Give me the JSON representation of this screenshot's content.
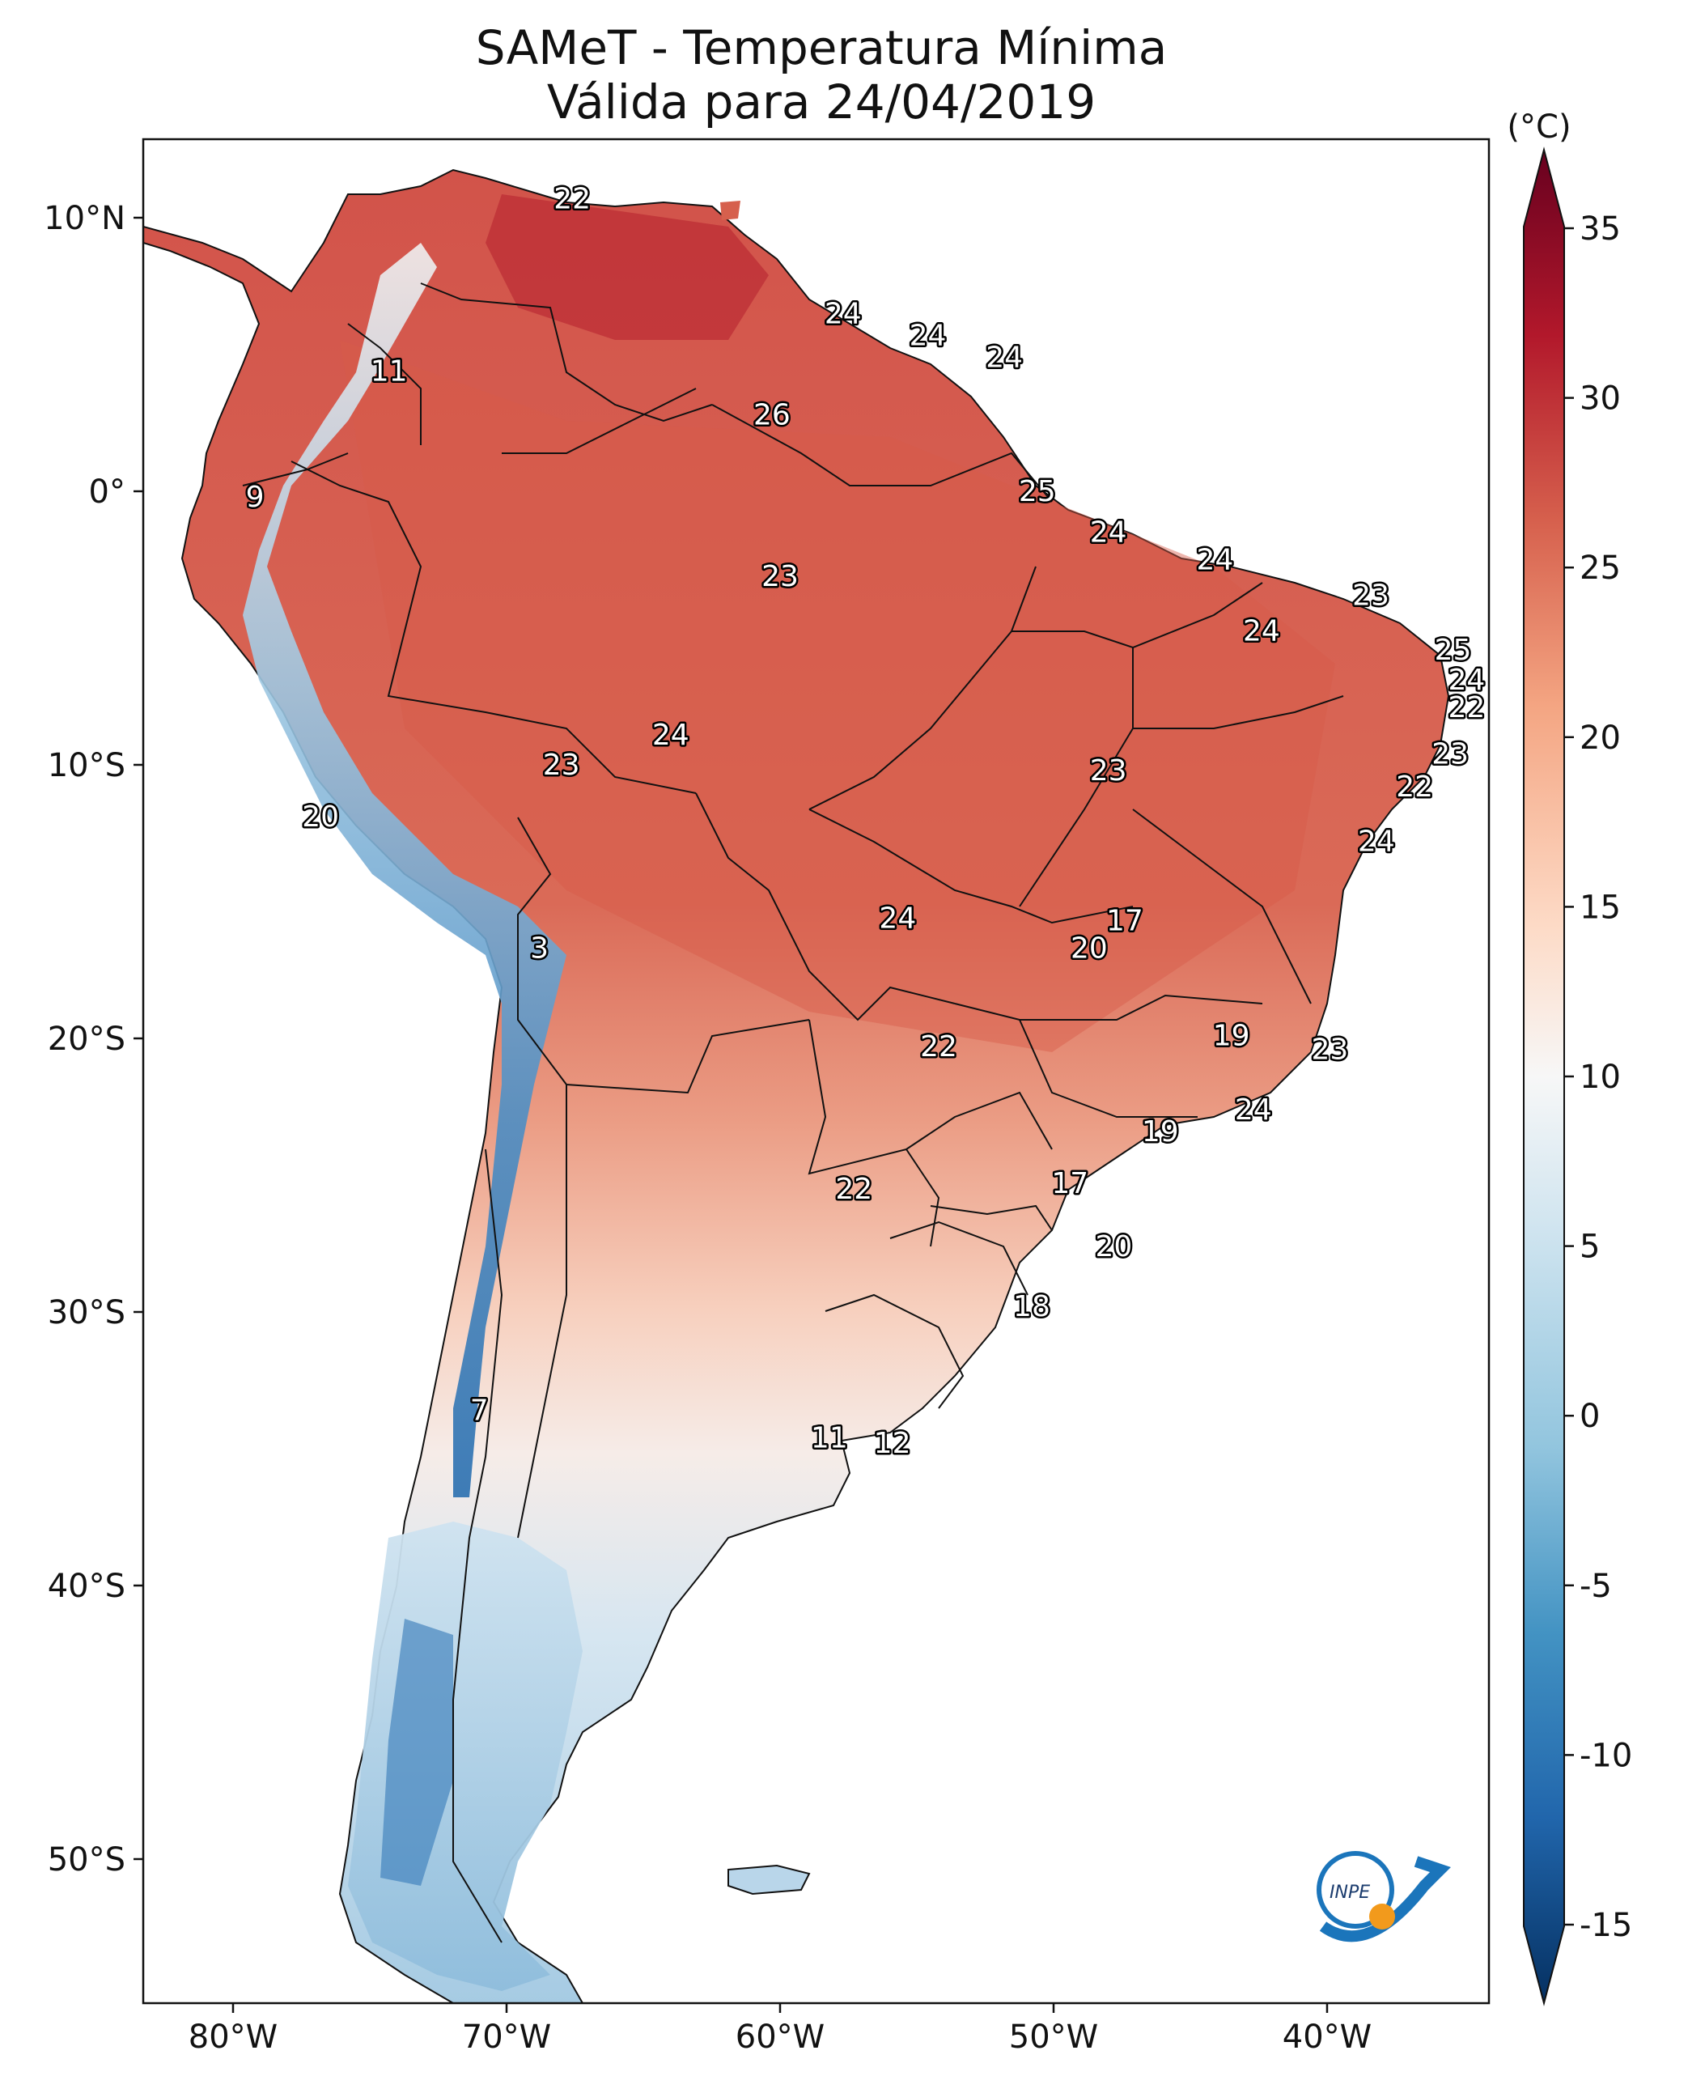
{
  "title": {
    "line1": "SAMeT - Temperatura Mínima",
    "line2": "Válida para 24/04/2019"
  },
  "map": {
    "lat_ticks": [
      "10°N",
      "0°",
      "10°S",
      "20°S",
      "30°S",
      "40°S",
      "50°S"
    ],
    "lon_ticks": [
      "80°W",
      "70°W",
      "60°W",
      "50°W",
      "40°W"
    ]
  },
  "colorbar": {
    "unit": "(°C)",
    "ticks": [
      "35",
      "30",
      "25",
      "20",
      "15",
      "10",
      "5",
      "0",
      "-5",
      "-10",
      "-15"
    ],
    "colors": [
      "#053061",
      "#2166ac",
      "#4393c3",
      "#92c5de",
      "#d1e5f0",
      "#f7f7f7",
      "#fddbc7",
      "#f4a582",
      "#d6604d",
      "#b2182b",
      "#67001f"
    ]
  },
  "labels": [
    {
      "name": "label-caribbean",
      "text": "22",
      "lon": -67.6,
      "lat": 10.7
    },
    {
      "name": "label-colombia",
      "text": "11",
      "lon": -74.3,
      "lat": 4.4
    },
    {
      "name": "label-venezuela-east",
      "text": "24",
      "lon": -57.7,
      "lat": 6.5
    },
    {
      "name": "label-guyana",
      "text": "24",
      "lon": -54.6,
      "lat": 5.7
    },
    {
      "name": "label-suriname",
      "text": "24",
      "lon": -51.8,
      "lat": 4.9
    },
    {
      "name": "label-roraima",
      "text": "26",
      "lon": -60.3,
      "lat": 2.8
    },
    {
      "name": "label-ecuador",
      "text": "9",
      "lon": -79.2,
      "lat": -0.2
    },
    {
      "name": "label-amapa",
      "text": "25",
      "lon": -50.6,
      "lat": 0.0
    },
    {
      "name": "label-para-north",
      "text": "24",
      "lon": -48.0,
      "lat": -1.5
    },
    {
      "name": "label-maranhao",
      "text": "24",
      "lon": -44.1,
      "lat": -2.5
    },
    {
      "name": "label-ceara",
      "text": "23",
      "lon": -38.4,
      "lat": -3.8
    },
    {
      "name": "label-amazonas",
      "text": "23",
      "lon": -60.0,
      "lat": -3.1
    },
    {
      "name": "label-piaui",
      "text": "24",
      "lon": -42.4,
      "lat": -5.1
    },
    {
      "name": "label-rn",
      "text": "25",
      "lon": -35.4,
      "lat": -5.8
    },
    {
      "name": "label-pb",
      "text": "24",
      "lon": -34.9,
      "lat": -6.9
    },
    {
      "name": "label-pe",
      "text": "22",
      "lon": -34.9,
      "lat": -7.9
    },
    {
      "name": "label-acre-east",
      "text": "24",
      "lon": -64.0,
      "lat": -8.9
    },
    {
      "name": "label-acre",
      "text": "23",
      "lon": -68.0,
      "lat": -10.0
    },
    {
      "name": "label-tocantins",
      "text": "23",
      "lon": -48.0,
      "lat": -10.2
    },
    {
      "name": "label-alagoas",
      "text": "23",
      "lon": -35.5,
      "lat": -9.6
    },
    {
      "name": "label-sergipe",
      "text": "22",
      "lon": -36.8,
      "lat": -10.8
    },
    {
      "name": "label-peru",
      "text": "20",
      "lon": -76.8,
      "lat": -11.9
    },
    {
      "name": "label-bahia",
      "text": "24",
      "lon": -38.2,
      "lat": -12.8
    },
    {
      "name": "label-bolivia-andes",
      "text": "3",
      "lon": -68.8,
      "lat": -16.7
    },
    {
      "name": "label-mato-grosso",
      "text": "24",
      "lon": -55.7,
      "lat": -15.6
    },
    {
      "name": "label-brasilia",
      "text": "17",
      "lon": -47.4,
      "lat": -15.7
    },
    {
      "name": "label-goias",
      "text": "20",
      "lon": -48.7,
      "lat": -16.7
    },
    {
      "name": "label-minas",
      "text": "19",
      "lon": -43.5,
      "lat": -19.9
    },
    {
      "name": "label-espirito-santo",
      "text": "23",
      "lon": -39.9,
      "lat": -20.4
    },
    {
      "name": "label-ms",
      "text": "22",
      "lon": -54.2,
      "lat": -20.3
    },
    {
      "name": "label-rio",
      "text": "24",
      "lon": -42.7,
      "lat": -22.6
    },
    {
      "name": "label-sao-paulo",
      "text": "19",
      "lon": -46.1,
      "lat": -23.4
    },
    {
      "name": "label-paraguay",
      "text": "22",
      "lon": -57.3,
      "lat": -25.5
    },
    {
      "name": "label-parana",
      "text": "17",
      "lon": -49.4,
      "lat": -25.3
    },
    {
      "name": "label-santa-catarina",
      "text": "20",
      "lon": -47.8,
      "lat": -27.6
    },
    {
      "name": "label-rs",
      "text": "18",
      "lon": -50.8,
      "lat": -29.8
    },
    {
      "name": "label-chile",
      "text": "7",
      "lon": -71.0,
      "lat": -33.6
    },
    {
      "name": "label-buenos-aires",
      "text": "11",
      "lon": -58.2,
      "lat": -34.6
    },
    {
      "name": "label-montevideo",
      "text": "12",
      "lon": -55.9,
      "lat": -34.8
    }
  ]
}
